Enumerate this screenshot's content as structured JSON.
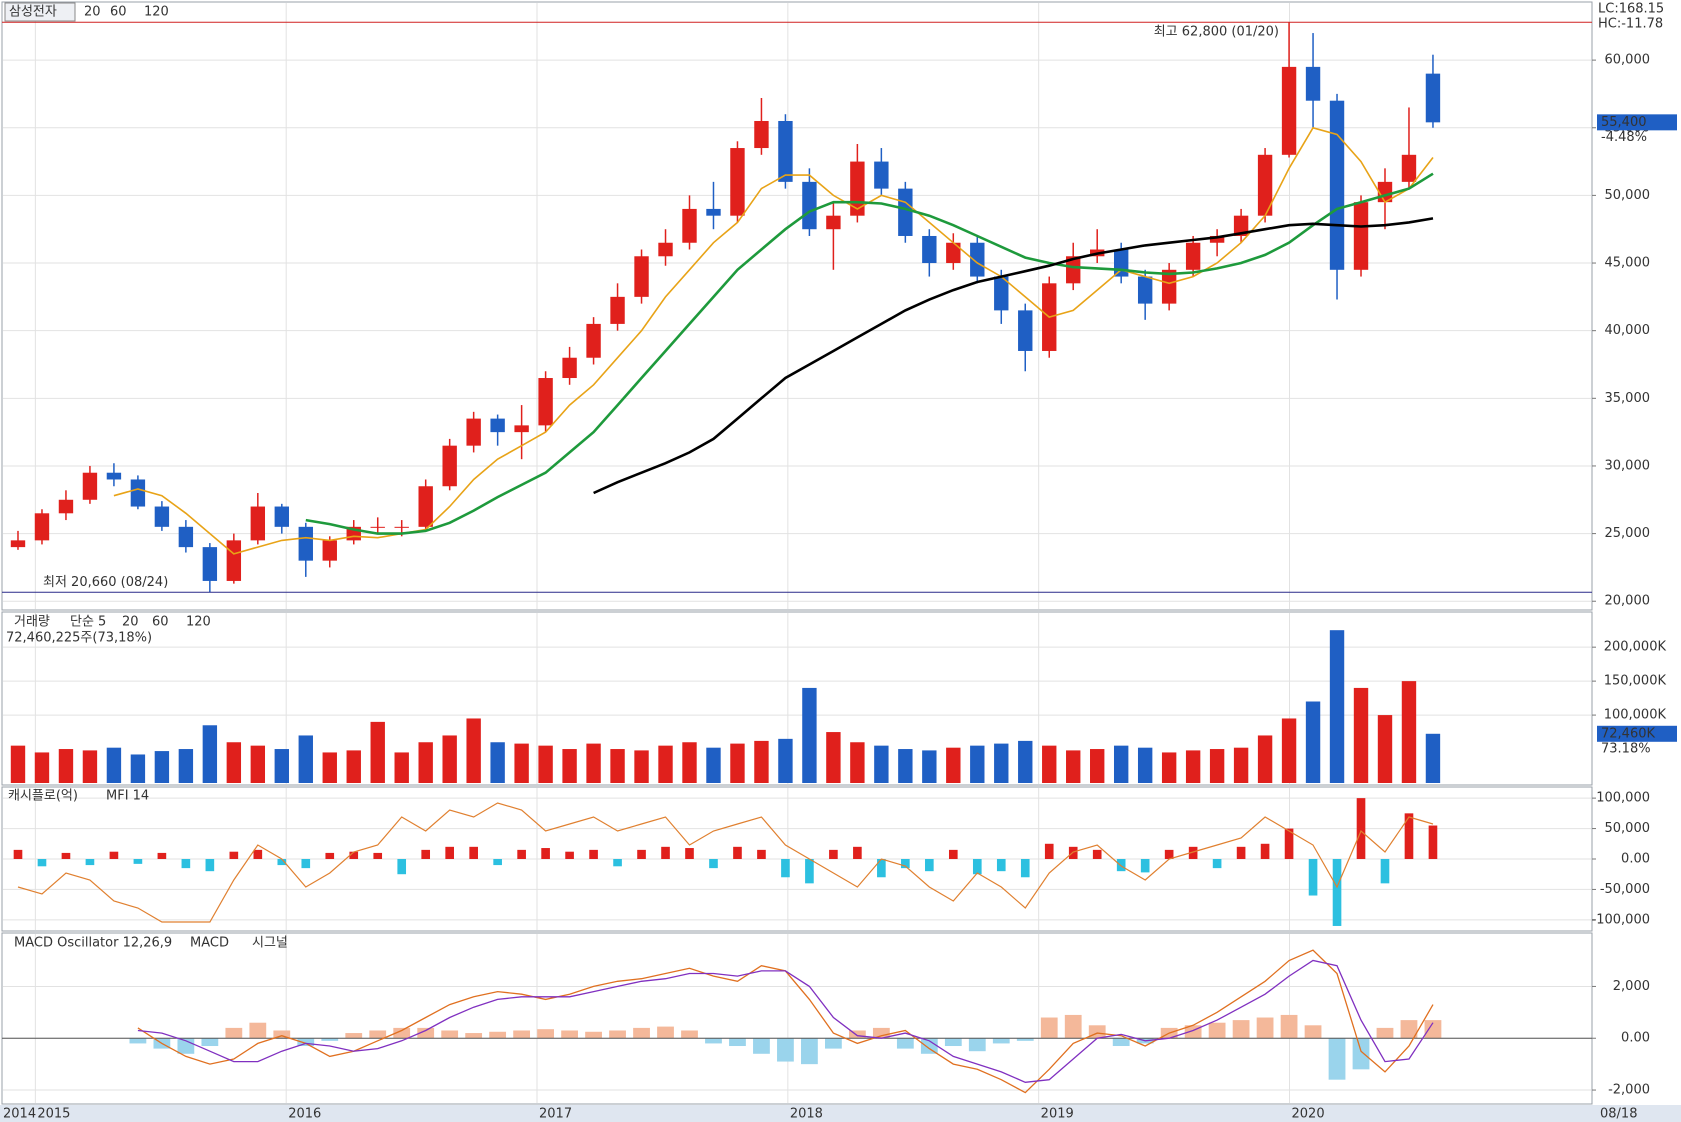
{
  "chart_data": [
    {
      "type": "candlestick",
      "title": "삼성전자",
      "notes": [
        "LC:168.15",
        "HC:-11.78"
      ],
      "up_color": "#e0201c",
      "down_color": "#1f5fc4",
      "candles": [
        [
          24000,
          25200,
          23800,
          24500
        ],
        [
          24500,
          26800,
          24200,
          26500
        ],
        [
          26500,
          28200,
          26000,
          27500
        ],
        [
          27500,
          30000,
          27200,
          29500
        ],
        [
          29500,
          30200,
          28500,
          29000
        ],
        [
          29000,
          29300,
          26800,
          27000
        ],
        [
          27000,
          27400,
          25200,
          25500
        ],
        [
          25500,
          26000,
          23600,
          24000
        ],
        [
          24000,
          24300,
          20660,
          21500
        ],
        [
          21500,
          25000,
          21300,
          24500
        ],
        [
          24500,
          28000,
          24200,
          27000
        ],
        [
          27000,
          27200,
          25000,
          25500
        ],
        [
          25500,
          25800,
          21800,
          23000
        ],
        [
          23000,
          24800,
          22500,
          24500
        ],
        [
          24500,
          26000,
          24200,
          25500
        ],
        [
          25500,
          26200,
          25000,
          25500
        ],
        [
          25500,
          26000,
          24800,
          25500
        ],
        [
          25500,
          29000,
          25300,
          28500
        ],
        [
          28500,
          32000,
          28200,
          31500
        ],
        [
          31500,
          34000,
          31000,
          33500
        ],
        [
          33500,
          33800,
          31500,
          32500
        ],
        [
          32500,
          34500,
          30500,
          33000
        ],
        [
          33000,
          37000,
          32500,
          36500
        ],
        [
          36500,
          38800,
          36000,
          38000
        ],
        [
          38000,
          41000,
          37500,
          40500
        ],
        [
          40500,
          43500,
          40000,
          42500
        ],
        [
          42500,
          46000,
          42000,
          45500
        ],
        [
          45500,
          47500,
          44800,
          46500
        ],
        [
          46500,
          50000,
          46000,
          49000
        ],
        [
          49000,
          51000,
          47500,
          48500
        ],
        [
          48500,
          54000,
          48000,
          53500
        ],
        [
          53500,
          57200,
          53000,
          55500
        ],
        [
          55500,
          56000,
          50500,
          51000
        ],
        [
          51000,
          52000,
          47000,
          47500
        ],
        [
          47500,
          49500,
          44500,
          48500
        ],
        [
          48500,
          53800,
          48000,
          52500
        ],
        [
          52500,
          53500,
          50000,
          50500
        ],
        [
          50500,
          51000,
          46500,
          47000
        ],
        [
          47000,
          47500,
          44000,
          45000
        ],
        [
          45000,
          47200,
          44500,
          46500
        ],
        [
          46500,
          47000,
          43500,
          44000
        ],
        [
          44000,
          44500,
          40500,
          41500
        ],
        [
          41500,
          42000,
          37000,
          38500
        ],
        [
          38500,
          44000,
          38000,
          43500
        ],
        [
          43500,
          46500,
          43000,
          45500
        ],
        [
          45500,
          47500,
          45000,
          46000
        ],
        [
          46000,
          46500,
          43500,
          44000
        ],
        [
          44000,
          44500,
          40800,
          42000
        ],
        [
          42000,
          45000,
          41500,
          44500
        ],
        [
          44500,
          47000,
          44000,
          46500
        ],
        [
          46500,
          47500,
          45500,
          47000
        ],
        [
          47000,
          49000,
          46500,
          48500
        ],
        [
          48500,
          53500,
          48000,
          53000
        ],
        [
          53000,
          62800,
          52800,
          59500
        ],
        [
          59500,
          62000,
          55000,
          57000
        ],
        [
          57000,
          57500,
          42300,
          44500
        ],
        [
          44500,
          50000,
          44000,
          49500
        ],
        [
          49500,
          52000,
          47500,
          51000
        ],
        [
          51000,
          56500,
          50500,
          53000
        ],
        [
          59000,
          60400,
          55000,
          55400
        ]
      ],
      "series": [
        {
          "name": "20",
          "color": "#e8a317",
          "values": [
            null,
            null,
            null,
            null,
            27800,
            28300,
            27800,
            26500,
            25000,
            23500,
            24000,
            24500,
            24700,
            24500,
            24800,
            24700,
            25000,
            25300,
            27000,
            29000,
            30500,
            31500,
            32500,
            34500,
            36000,
            38000,
            40000,
            42500,
            44500,
            46500,
            48000,
            50500,
            51500,
            51500,
            50000,
            49000,
            50000,
            49500,
            48000,
            46500,
            45000,
            44000,
            42500,
            41000,
            41500,
            43000,
            44500,
            44000,
            43500,
            44000,
            45000,
            46500,
            48500,
            52000,
            55000,
            54500,
            52500,
            49500,
            50500,
            52800
          ]
        },
        {
          "name": "60",
          "color": "#1e9a3c",
          "values": [
            null,
            null,
            null,
            null,
            null,
            null,
            null,
            null,
            null,
            null,
            null,
            null,
            26000,
            25700,
            25300,
            25000,
            25000,
            25200,
            25800,
            26700,
            27700,
            28600,
            29500,
            31000,
            32500,
            34500,
            36500,
            38500,
            40500,
            42500,
            44500,
            46000,
            47500,
            48800,
            49500,
            49500,
            49400,
            49000,
            48500,
            47800,
            47000,
            46200,
            45400,
            45000,
            44700,
            44600,
            44500,
            44300,
            44200,
            44300,
            44600,
            45000,
            45600,
            46500,
            47800,
            49000,
            49500,
            50000,
            50500,
            51600
          ]
        },
        {
          "name": "120",
          "color": "#000000",
          "values": [
            null,
            null,
            null,
            null,
            null,
            null,
            null,
            null,
            null,
            null,
            null,
            null,
            null,
            null,
            null,
            null,
            null,
            null,
            null,
            null,
            null,
            null,
            null,
            null,
            28000,
            28800,
            29500,
            30200,
            31000,
            32000,
            33500,
            35000,
            36500,
            37500,
            38500,
            39500,
            40500,
            41500,
            42300,
            43000,
            43600,
            44000,
            44400,
            44800,
            45300,
            45700,
            46000,
            46300,
            46500,
            46700,
            46900,
            47200,
            47500,
            47800,
            47900,
            47800,
            47700,
            47800,
            48000,
            48300
          ]
        }
      ],
      "high": {
        "value": 62800,
        "label": "최고 62,800 (01/20)"
      },
      "low": {
        "value": 20660,
        "label": "최저 20,660 (08/24)"
      },
      "last": {
        "value": 55400,
        "label": "55,400"
      },
      "change": "-4.48%",
      "ylim": [
        19500,
        64000
      ],
      "yticks": [
        {
          "value": 20000,
          "label": "20,000"
        },
        {
          "value": 25000,
          "label": "25,000"
        },
        {
          "value": 30000,
          "label": "30,000"
        },
        {
          "value": 35000,
          "label": "35,000"
        },
        {
          "value": 40000,
          "label": "40,000"
        },
        {
          "value": 45000,
          "label": "45,000"
        },
        {
          "value": 50000,
          "label": "50,000"
        },
        {
          "value": 55000,
          "label": "55,000"
        },
        {
          "value": 60000,
          "label": "60,000"
        }
      ],
      "xlim": [
        2014.867,
        2021.206
      ],
      "xticks": [
        2015,
        2016,
        2017,
        2018,
        2019,
        2020
      ],
      "x_start_label": "2014",
      "x_end_label": "08/18",
      "grid": true
    },
    {
      "type": "bar",
      "title": "거래량",
      "legend": [
        {
          "name": "단순 5",
          "color": "#c040c0"
        },
        {
          "name": "20",
          "color": "#e8a317"
        },
        {
          "name": "60",
          "color": "#1e9a3c"
        },
        {
          "name": "120",
          "color": "#888888"
        }
      ],
      "info": "72,460,225주(73,18%)",
      "values": [
        55000,
        45000,
        50000,
        48000,
        52000,
        42000,
        47000,
        50000,
        85000,
        60000,
        55000,
        50000,
        70000,
        45000,
        48000,
        90000,
        45000,
        60000,
        70000,
        95000,
        60000,
        58000,
        55000,
        50000,
        58000,
        50000,
        48000,
        55000,
        60000,
        52000,
        58000,
        62000,
        65000,
        140000,
        75000,
        60000,
        55000,
        50000,
        48000,
        52000,
        55000,
        58000,
        62000,
        55000,
        48000,
        50000,
        55000,
        52000,
        45000,
        48000,
        50000,
        52000,
        70000,
        95000,
        120000,
        225000,
        140000,
        100000,
        150000,
        72460
      ],
      "last": {
        "value": 72460,
        "label": "72,460K"
      },
      "last_ratio": "73.18%",
      "ylim": [
        0,
        240000
      ],
      "yticks": [
        {
          "value": 100000,
          "label": "100,000K"
        },
        {
          "value": 150000,
          "label": "150,000K"
        },
        {
          "value": 200000,
          "label": "200,000K"
        }
      ]
    },
    {
      "type": "cashflow",
      "title": "캐시플로(억)",
      "pos_color": "#e0201c",
      "neg_color": "#2cc0e0",
      "values": [
        15000,
        -12000,
        10000,
        -10000,
        12000,
        -8000,
        10000,
        -15000,
        -20000,
        12000,
        15000,
        -10000,
        -15000,
        10000,
        12000,
        10000,
        -25000,
        15000,
        20000,
        20000,
        -10000,
        15000,
        18000,
        12000,
        15000,
        -12000,
        15000,
        20000,
        18000,
        -15000,
        20000,
        15000,
        -30000,
        -40000,
        15000,
        20000,
        -30000,
        -15000,
        -20000,
        15000,
        -25000,
        -20000,
        -30000,
        25000,
        20000,
        15000,
        -20000,
        -22000,
        15000,
        20000,
        -15000,
        20000,
        25000,
        50000,
        -60000,
        -110000,
        100000,
        -40000,
        75000,
        55000
      ],
      "series": [
        {
          "name": "MFI 14",
          "color": "#e08030",
          "axis": "y2",
          "values": [
            30,
            25,
            40,
            35,
            20,
            15,
            5,
            5,
            5,
            35,
            60,
            50,
            30,
            40,
            55,
            60,
            80,
            70,
            85,
            80,
            90,
            85,
            70,
            75,
            80,
            70,
            75,
            80,
            60,
            70,
            75,
            80,
            60,
            50,
            40,
            30,
            50,
            45,
            30,
            20,
            40,
            30,
            15,
            40,
            55,
            60,
            45,
            35,
            50,
            55,
            60,
            65,
            80,
            70,
            60,
            30,
            70,
            55,
            80,
            75
          ]
        }
      ],
      "ylim": [
        -115000,
        115000
      ],
      "y2lim": [
        0,
        100
      ],
      "yticks": [
        {
          "value": -100000,
          "label": "-100,000"
        },
        {
          "value": -50000,
          "label": "-50,000"
        },
        {
          "value": 0,
          "label": "0.00"
        },
        {
          "value": 50000,
          "label": "50,000"
        },
        {
          "value": 100000,
          "label": "100,000"
        }
      ]
    },
    {
      "type": "macd",
      "title": "MACD Oscillator 12,26,9",
      "pos_color": "#f4b89a",
      "neg_color": "#9ad4ec",
      "values": [
        null,
        null,
        null,
        null,
        null,
        -200,
        -400,
        -600,
        -300,
        400,
        600,
        300,
        -300,
        -100,
        200,
        300,
        400,
        400,
        300,
        200,
        250,
        300,
        350,
        300,
        250,
        300,
        400,
        450,
        300,
        -200,
        -300,
        -600,
        -900,
        -1000,
        -400,
        300,
        400,
        -400,
        -600,
        -300,
        -500,
        -200,
        -100,
        800,
        900,
        500,
        -300,
        -200,
        400,
        500,
        600,
        700,
        800,
        900,
        500,
        -1600,
        -1200,
        400,
        700,
        700
      ],
      "series": [
        {
          "name": "MACD",
          "color": "#e07020",
          "values": [
            null,
            null,
            null,
            null,
            null,
            400,
            -200,
            -700,
            -1000,
            -800,
            -200,
            100,
            -200,
            -700,
            -500,
            -100,
            300,
            800,
            1300,
            1600,
            1800,
            1700,
            1500,
            1700,
            2000,
            2200,
            2300,
            2500,
            2700,
            2400,
            2200,
            2800,
            2600,
            1500,
            200,
            -200,
            100,
            300,
            -400,
            -1000,
            -1200,
            -1600,
            -2100,
            -1200,
            -200,
            200,
            100,
            -300,
            200,
            500,
            1000,
            1600,
            2200,
            3000,
            3400,
            2500,
            -500,
            -1300,
            -300,
            1300
          ]
        },
        {
          "name": "시그널",
          "color": "#8030c0",
          "values": [
            null,
            null,
            null,
            null,
            null,
            300,
            200,
            -100,
            -500,
            -900,
            -900,
            -500,
            -200,
            -300,
            -500,
            -400,
            -100,
            300,
            800,
            1200,
            1500,
            1600,
            1600,
            1600,
            1800,
            2000,
            2200,
            2300,
            2500,
            2500,
            2400,
            2600,
            2600,
            2000,
            800,
            100,
            0,
            200,
            -100,
            -700,
            -1000,
            -1300,
            -1700,
            -1600,
            -800,
            0,
            150,
            -100,
            0,
            300,
            700,
            1200,
            1700,
            2400,
            3000,
            2800,
            700,
            -900,
            -800,
            600
          ]
        }
      ],
      "ylim": [
        -2500,
        3600
      ],
      "yticks": [
        {
          "value": -2000,
          "label": "-2,000"
        },
        {
          "value": 0,
          "label": "0.00"
        },
        {
          "value": 2000,
          "label": "2,000"
        }
      ]
    }
  ]
}
